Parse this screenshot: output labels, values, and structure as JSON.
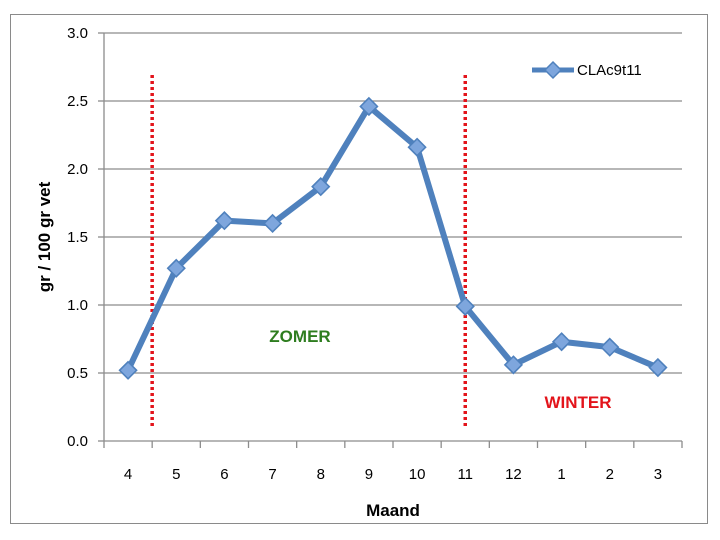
{
  "chart_data": {
    "type": "line",
    "categories": [
      "4",
      "5",
      "6",
      "7",
      "8",
      "9",
      "10",
      "11",
      "12",
      "1",
      "2",
      "3"
    ],
    "series": [
      {
        "name": "CLAc9t11",
        "values": [
          0.52,
          1.27,
          1.62,
          1.6,
          1.87,
          2.46,
          2.16,
          0.99,
          0.56,
          0.73,
          0.69,
          0.54
        ]
      }
    ],
    "xlabel": "Maand",
    "ylabel": "gr / 100 gr vet",
    "ylim": [
      0,
      3.0
    ],
    "yticks": [
      "0.0",
      "0.5",
      "1.0",
      "1.5",
      "2.0",
      "2.5",
      "3.0"
    ],
    "grid": true,
    "legend_position": "top-right",
    "series_color": "#4f81bd",
    "marker": "diamond",
    "annotations": [
      {
        "text": "ZOMER",
        "color": "#2e7d1f"
      },
      {
        "text": "WINTER",
        "color": "#e3141b"
      }
    ],
    "reference_lines": [
      {
        "style": "dotted",
        "color": "#e3141b",
        "between": [
          "4",
          "5"
        ]
      },
      {
        "style": "dotted",
        "color": "#e3141b",
        "at": "11"
      }
    ]
  }
}
